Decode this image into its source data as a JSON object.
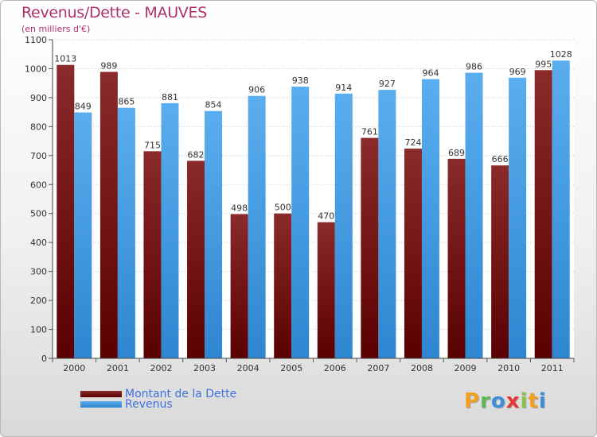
{
  "title": "Revenus/Dette - MAUVES",
  "subtitle": "(en milliers d'€)",
  "colors": {
    "dette": "#7a1a1a",
    "dette_light": "#9a3b3b",
    "revenus": "#4aa0e6",
    "revenus_light": "#6cb8f0",
    "title": "#b0306a",
    "legend_text": "#3f6fe0"
  },
  "chart_data": {
    "type": "bar",
    "title": "Revenus/Dette - MAUVES",
    "ylabel": "(en milliers d'€)",
    "xlabel": "",
    "ylim": [
      0,
      1100
    ],
    "yticks": [
      0,
      100,
      200,
      300,
      400,
      500,
      600,
      700,
      800,
      900,
      1000,
      1100
    ],
    "grid": true,
    "legend_position": "bottom-left",
    "categories": [
      "2000",
      "2001",
      "2002",
      "2003",
      "2004",
      "2005",
      "2006",
      "2007",
      "2008",
      "2009",
      "2010",
      "2011"
    ],
    "series": [
      {
        "name": "Montant de la Dette",
        "values": [
          1013,
          989,
          715,
          682,
          498,
          500,
          470,
          761,
          724,
          689,
          666,
          995
        ]
      },
      {
        "name": "Revenus",
        "values": [
          849,
          865,
          881,
          854,
          906,
          938,
          914,
          927,
          964,
          986,
          969,
          1028
        ]
      }
    ]
  },
  "legend": {
    "dette_label": "Montant de la Dette",
    "revenus_label": "Revenus"
  },
  "logo": {
    "letters": [
      "P",
      "r",
      "o",
      "x",
      "i",
      "t",
      "i"
    ],
    "letter_colors": [
      "#f0a020",
      "#5cb85c",
      "#3a8fd8",
      "#e53935",
      "#8bc34a",
      "#f0a020",
      "#3a8fd8"
    ]
  }
}
